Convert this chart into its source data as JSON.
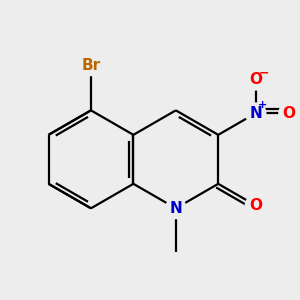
{
  "bg_color": "#ededed",
  "bond_color": "#000000",
  "bond_width": 1.6,
  "atom_colors": {
    "N_ring": "#0000cc",
    "O": "#ff0000",
    "Br": "#bb6600",
    "N_nitro": "#0000cc"
  },
  "font_size": 11,
  "font_size_charge": 8
}
